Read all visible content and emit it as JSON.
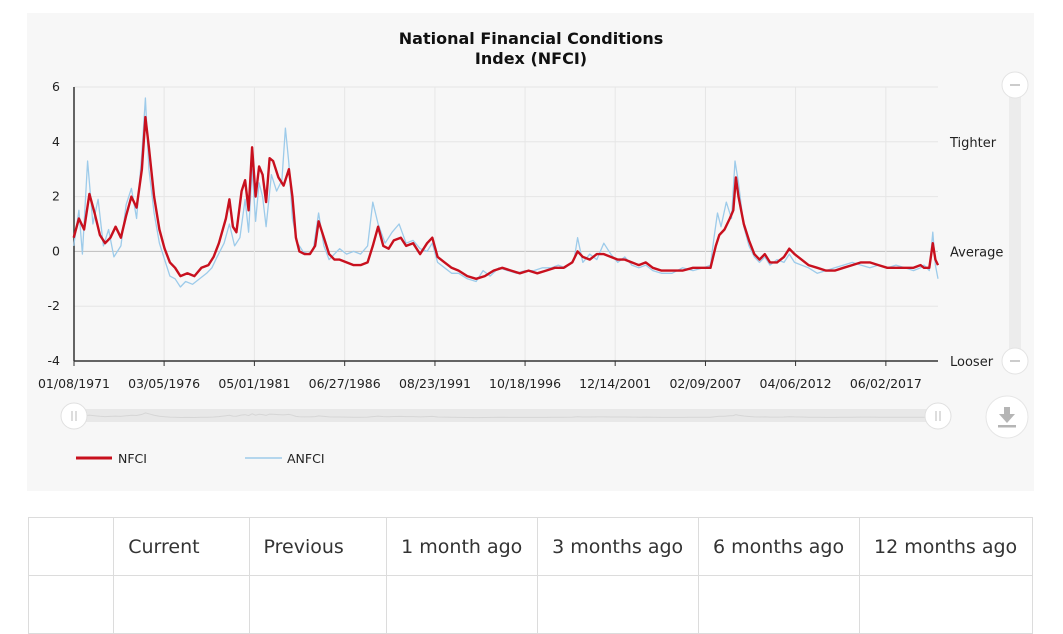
{
  "chart_data": {
    "type": "line",
    "title": "National Financial Conditions Index (NFCI)",
    "title_lines": [
      "National Financial Conditions",
      "Index (NFCI)"
    ],
    "x_tick_labels": [
      "01/08/1971",
      "03/05/1976",
      "05/01/1981",
      "06/27/1986",
      "08/23/1991",
      "10/18/1996",
      "12/14/2001",
      "02/09/2007",
      "04/06/2012",
      "06/02/2017"
    ],
    "x_tick_years": [
      1971.02,
      1976.17,
      1981.33,
      1986.49,
      1991.65,
      1996.8,
      2001.95,
      2007.11,
      2012.26,
      2017.42
    ],
    "xlim": [
      1971.02,
      2020.4
    ],
    "ylim": [
      -4,
      6
    ],
    "y_ticks": [
      6,
      4,
      2,
      0,
      -2,
      -4
    ],
    "y_tick_labels": [
      "6",
      "4",
      "2",
      "0",
      "-2",
      "-4"
    ],
    "right_labels": [
      {
        "text": "Tighter",
        "y": 4
      },
      {
        "text": "Average",
        "y": 0
      },
      {
        "text": "Looser",
        "y": -4
      }
    ],
    "grid": true,
    "legend_position": "bottom-left",
    "colors": {
      "NFCI": "#c8101e",
      "ANFCI": "#9dcbea"
    },
    "series": [
      {
        "name": "NFCI",
        "points": [
          [
            1971.0,
            0.5
          ],
          [
            1971.3,
            1.2
          ],
          [
            1971.6,
            0.8
          ],
          [
            1971.9,
            2.1
          ],
          [
            1972.2,
            1.4
          ],
          [
            1972.5,
            0.6
          ],
          [
            1972.8,
            0.3
          ],
          [
            1973.1,
            0.5
          ],
          [
            1973.4,
            0.9
          ],
          [
            1973.7,
            0.5
          ],
          [
            1974.0,
            1.3
          ],
          [
            1974.3,
            2.0
          ],
          [
            1974.6,
            1.6
          ],
          [
            1974.9,
            3.0
          ],
          [
            1975.1,
            4.9
          ],
          [
            1975.3,
            3.8
          ],
          [
            1975.6,
            2.0
          ],
          [
            1975.9,
            0.8
          ],
          [
            1976.2,
            0.1
          ],
          [
            1976.5,
            -0.4
          ],
          [
            1976.8,
            -0.6
          ],
          [
            1977.1,
            -0.9
          ],
          [
            1977.5,
            -0.8
          ],
          [
            1977.9,
            -0.9
          ],
          [
            1978.3,
            -0.6
          ],
          [
            1978.7,
            -0.5
          ],
          [
            1979.0,
            -0.2
          ],
          [
            1979.3,
            0.3
          ],
          [
            1979.7,
            1.2
          ],
          [
            1979.9,
            1.9
          ],
          [
            1980.1,
            0.9
          ],
          [
            1980.3,
            0.7
          ],
          [
            1980.6,
            2.2
          ],
          [
            1980.8,
            2.6
          ],
          [
            1981.0,
            1.5
          ],
          [
            1981.2,
            3.8
          ],
          [
            1981.4,
            2.0
          ],
          [
            1981.6,
            3.1
          ],
          [
            1981.8,
            2.8
          ],
          [
            1982.0,
            1.8
          ],
          [
            1982.2,
            3.4
          ],
          [
            1982.4,
            3.3
          ],
          [
            1982.7,
            2.7
          ],
          [
            1983.0,
            2.4
          ],
          [
            1983.3,
            3.0
          ],
          [
            1983.5,
            2.0
          ],
          [
            1983.7,
            0.5
          ],
          [
            1983.9,
            0.0
          ],
          [
            1984.2,
            -0.1
          ],
          [
            1984.5,
            -0.1
          ],
          [
            1984.8,
            0.2
          ],
          [
            1985.0,
            1.1
          ],
          [
            1985.3,
            0.5
          ],
          [
            1985.6,
            -0.1
          ],
          [
            1985.9,
            -0.3
          ],
          [
            1986.2,
            -0.3
          ],
          [
            1986.6,
            -0.4
          ],
          [
            1987.0,
            -0.5
          ],
          [
            1987.4,
            -0.5
          ],
          [
            1987.8,
            -0.4
          ],
          [
            1988.1,
            0.2
          ],
          [
            1988.4,
            0.9
          ],
          [
            1988.7,
            0.2
          ],
          [
            1989.0,
            0.1
          ],
          [
            1989.3,
            0.4
          ],
          [
            1989.7,
            0.5
          ],
          [
            1990.0,
            0.2
          ],
          [
            1990.4,
            0.3
          ],
          [
            1990.8,
            -0.1
          ],
          [
            1991.2,
            0.3
          ],
          [
            1991.5,
            0.5
          ],
          [
            1991.8,
            -0.2
          ],
          [
            1992.2,
            -0.4
          ],
          [
            1992.6,
            -0.6
          ],
          [
            1993.0,
            -0.7
          ],
          [
            1993.5,
            -0.9
          ],
          [
            1994.0,
            -1.0
          ],
          [
            1994.5,
            -0.9
          ],
          [
            1995.0,
            -0.7
          ],
          [
            1995.5,
            -0.6
          ],
          [
            1996.0,
            -0.7
          ],
          [
            1996.5,
            -0.8
          ],
          [
            1997.0,
            -0.7
          ],
          [
            1997.5,
            -0.8
          ],
          [
            1998.0,
            -0.7
          ],
          [
            1998.5,
            -0.6
          ],
          [
            1999.0,
            -0.6
          ],
          [
            1999.5,
            -0.4
          ],
          [
            1999.8,
            0.0
          ],
          [
            2000.1,
            -0.2
          ],
          [
            2000.5,
            -0.3
          ],
          [
            2000.9,
            -0.1
          ],
          [
            2001.3,
            -0.1
          ],
          [
            2001.7,
            -0.2
          ],
          [
            2002.1,
            -0.3
          ],
          [
            2002.5,
            -0.3
          ],
          [
            2002.9,
            -0.4
          ],
          [
            2003.3,
            -0.5
          ],
          [
            2003.7,
            -0.4
          ],
          [
            2004.1,
            -0.6
          ],
          [
            2004.6,
            -0.7
          ],
          [
            2005.2,
            -0.7
          ],
          [
            2005.8,
            -0.7
          ],
          [
            2006.4,
            -0.6
          ],
          [
            2007.0,
            -0.6
          ],
          [
            2007.4,
            -0.6
          ],
          [
            2007.7,
            0.2
          ],
          [
            2007.9,
            0.6
          ],
          [
            2008.2,
            0.8
          ],
          [
            2008.5,
            1.2
          ],
          [
            2008.7,
            1.5
          ],
          [
            2008.85,
            2.7
          ],
          [
            2009.0,
            2.0
          ],
          [
            2009.3,
            1.0
          ],
          [
            2009.6,
            0.4
          ],
          [
            2009.9,
            -0.1
          ],
          [
            2010.2,
            -0.3
          ],
          [
            2010.5,
            -0.1
          ],
          [
            2010.8,
            -0.4
          ],
          [
            2011.2,
            -0.4
          ],
          [
            2011.6,
            -0.2
          ],
          [
            2011.9,
            0.1
          ],
          [
            2012.2,
            -0.1
          ],
          [
            2012.6,
            -0.3
          ],
          [
            2013.0,
            -0.5
          ],
          [
            2013.5,
            -0.6
          ],
          [
            2014.0,
            -0.7
          ],
          [
            2014.5,
            -0.7
          ],
          [
            2015.0,
            -0.6
          ],
          [
            2015.5,
            -0.5
          ],
          [
            2016.0,
            -0.4
          ],
          [
            2016.5,
            -0.4
          ],
          [
            2017.0,
            -0.5
          ],
          [
            2017.5,
            -0.6
          ],
          [
            2018.0,
            -0.6
          ],
          [
            2018.5,
            -0.6
          ],
          [
            2019.0,
            -0.6
          ],
          [
            2019.4,
            -0.5
          ],
          [
            2019.6,
            -0.6
          ],
          [
            2019.9,
            -0.6
          ],
          [
            2020.1,
            0.3
          ],
          [
            2020.25,
            -0.3
          ],
          [
            2020.4,
            -0.5
          ]
        ]
      },
      {
        "name": "ANFCI",
        "points": [
          [
            1971.0,
            0.2
          ],
          [
            1971.3,
            1.5
          ],
          [
            1971.5,
            -0.1
          ],
          [
            1971.8,
            3.3
          ],
          [
            1972.1,
            1.0
          ],
          [
            1972.4,
            1.9
          ],
          [
            1972.7,
            0.2
          ],
          [
            1973.0,
            0.8
          ],
          [
            1973.3,
            -0.2
          ],
          [
            1973.7,
            0.2
          ],
          [
            1974.0,
            1.7
          ],
          [
            1974.3,
            2.3
          ],
          [
            1974.6,
            1.2
          ],
          [
            1974.9,
            3.6
          ],
          [
            1975.1,
            5.6
          ],
          [
            1975.3,
            3.0
          ],
          [
            1975.6,
            1.4
          ],
          [
            1975.9,
            0.3
          ],
          [
            1976.2,
            -0.3
          ],
          [
            1976.5,
            -0.9
          ],
          [
            1976.8,
            -1.0
          ],
          [
            1977.1,
            -1.3
          ],
          [
            1977.4,
            -1.1
          ],
          [
            1977.8,
            -1.2
          ],
          [
            1978.2,
            -1.0
          ],
          [
            1978.6,
            -0.8
          ],
          [
            1978.9,
            -0.6
          ],
          [
            1979.2,
            -0.2
          ],
          [
            1979.6,
            0.3
          ],
          [
            1979.9,
            1.0
          ],
          [
            1980.2,
            0.2
          ],
          [
            1980.5,
            0.5
          ],
          [
            1980.8,
            1.9
          ],
          [
            1981.0,
            0.7
          ],
          [
            1981.2,
            3.0
          ],
          [
            1981.4,
            1.1
          ],
          [
            1981.6,
            2.5
          ],
          [
            1981.8,
            2.0
          ],
          [
            1982.0,
            0.9
          ],
          [
            1982.3,
            2.8
          ],
          [
            1982.6,
            2.2
          ],
          [
            1982.9,
            2.6
          ],
          [
            1983.1,
            4.5
          ],
          [
            1983.3,
            3.2
          ],
          [
            1983.5,
            1.2
          ],
          [
            1983.8,
            0.3
          ],
          [
            1984.1,
            0.0
          ],
          [
            1984.4,
            -0.1
          ],
          [
            1984.7,
            0.1
          ],
          [
            1985.0,
            1.4
          ],
          [
            1985.3,
            0.2
          ],
          [
            1985.6,
            -0.3
          ],
          [
            1985.9,
            -0.1
          ],
          [
            1986.2,
            0.1
          ],
          [
            1986.6,
            -0.1
          ],
          [
            1987.0,
            0.0
          ],
          [
            1987.4,
            -0.1
          ],
          [
            1987.8,
            0.2
          ],
          [
            1988.1,
            1.8
          ],
          [
            1988.4,
            1.0
          ],
          [
            1988.8,
            0.3
          ],
          [
            1989.2,
            0.7
          ],
          [
            1989.6,
            1.0
          ],
          [
            1990.0,
            0.3
          ],
          [
            1990.4,
            0.4
          ],
          [
            1990.8,
            0.1
          ],
          [
            1991.2,
            0.0
          ],
          [
            1991.5,
            0.3
          ],
          [
            1991.8,
            -0.4
          ],
          [
            1992.2,
            -0.6
          ],
          [
            1992.6,
            -0.8
          ],
          [
            1993.0,
            -0.8
          ],
          [
            1993.5,
            -1.0
          ],
          [
            1994.0,
            -1.1
          ],
          [
            1994.4,
            -0.7
          ],
          [
            1994.8,
            -0.9
          ],
          [
            1995.3,
            -0.6
          ],
          [
            1995.8,
            -0.7
          ],
          [
            1996.3,
            -0.8
          ],
          [
            1996.8,
            -0.7
          ],
          [
            1997.3,
            -0.7
          ],
          [
            1997.8,
            -0.6
          ],
          [
            1998.3,
            -0.6
          ],
          [
            1998.7,
            -0.5
          ],
          [
            1999.1,
            -0.6
          ],
          [
            1999.6,
            -0.3
          ],
          [
            1999.8,
            0.5
          ],
          [
            2000.1,
            -0.4
          ],
          [
            2000.5,
            -0.1
          ],
          [
            2000.9,
            -0.3
          ],
          [
            2001.3,
            0.3
          ],
          [
            2001.7,
            -0.1
          ],
          [
            2002.1,
            -0.4
          ],
          [
            2002.5,
            -0.2
          ],
          [
            2002.9,
            -0.5
          ],
          [
            2003.3,
            -0.6
          ],
          [
            2003.7,
            -0.5
          ],
          [
            2004.1,
            -0.7
          ],
          [
            2004.6,
            -0.8
          ],
          [
            2005.2,
            -0.8
          ],
          [
            2005.8,
            -0.6
          ],
          [
            2006.4,
            -0.7
          ],
          [
            2007.0,
            -0.6
          ],
          [
            2007.4,
            -0.5
          ],
          [
            2007.6,
            0.5
          ],
          [
            2007.8,
            1.4
          ],
          [
            2008.0,
            0.9
          ],
          [
            2008.3,
            1.8
          ],
          [
            2008.6,
            1.2
          ],
          [
            2008.8,
            3.3
          ],
          [
            2009.0,
            2.5
          ],
          [
            2009.3,
            0.9
          ],
          [
            2009.6,
            0.2
          ],
          [
            2009.9,
            -0.2
          ],
          [
            2010.2,
            -0.4
          ],
          [
            2010.5,
            -0.2
          ],
          [
            2010.8,
            -0.5
          ],
          [
            2011.2,
            -0.3
          ],
          [
            2011.6,
            -0.4
          ],
          [
            2011.9,
            -0.1
          ],
          [
            2012.2,
            -0.4
          ],
          [
            2012.6,
            -0.5
          ],
          [
            2013.0,
            -0.6
          ],
          [
            2013.5,
            -0.8
          ],
          [
            2014.0,
            -0.7
          ],
          [
            2014.5,
            -0.6
          ],
          [
            2015.0,
            -0.5
          ],
          [
            2015.5,
            -0.4
          ],
          [
            2016.0,
            -0.5
          ],
          [
            2016.5,
            -0.6
          ],
          [
            2017.0,
            -0.5
          ],
          [
            2017.5,
            -0.6
          ],
          [
            2018.0,
            -0.5
          ],
          [
            2018.5,
            -0.6
          ],
          [
            2019.0,
            -0.7
          ],
          [
            2019.4,
            -0.6
          ],
          [
            2019.6,
            -0.5
          ],
          [
            2019.9,
            -0.7
          ],
          [
            2020.1,
            0.7
          ],
          [
            2020.25,
            -0.5
          ],
          [
            2020.4,
            -1.0
          ]
        ]
      }
    ],
    "navigator_series": "NFCI"
  },
  "table": {
    "headers": [
      "",
      "Current",
      "Previous",
      "1 month ago",
      "3 months ago",
      "6 months ago",
      "12 months ago"
    ]
  }
}
